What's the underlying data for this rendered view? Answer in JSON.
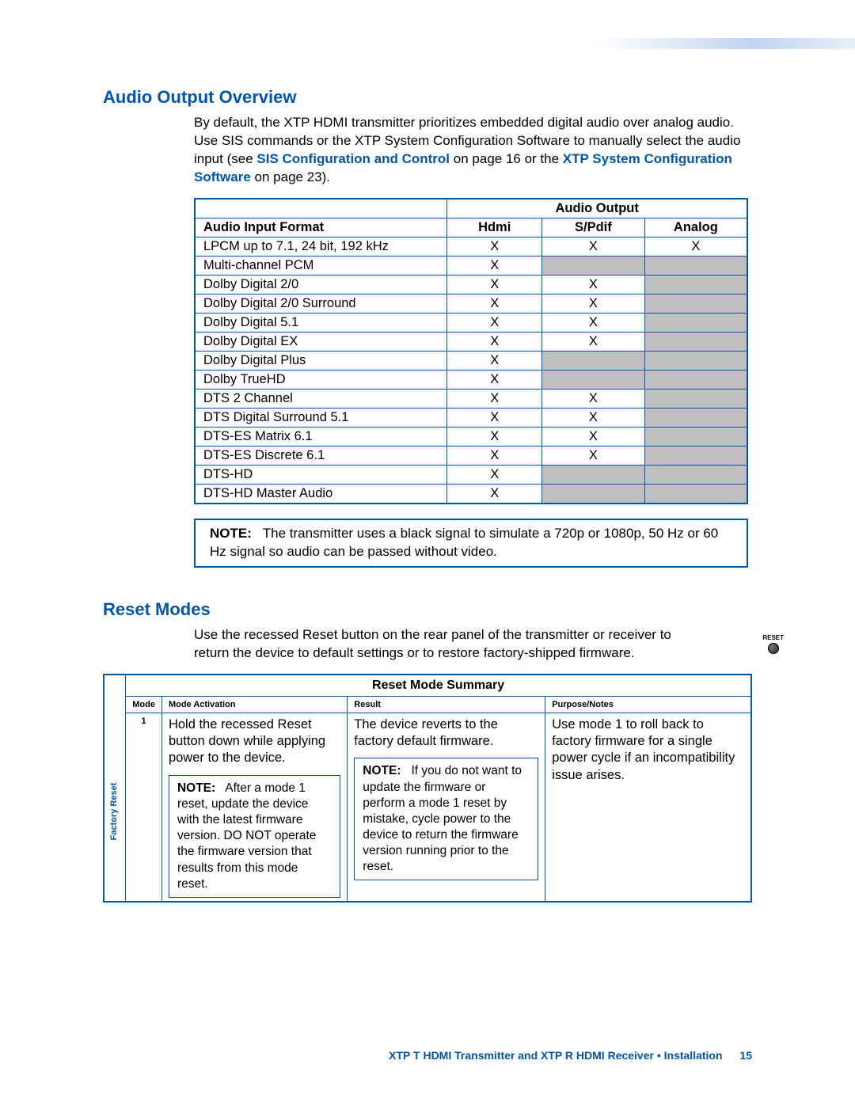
{
  "section1": {
    "title": "Audio Output Overview",
    "intro_1": "By default, the XTP HDMI transmitter prioritizes embedded digital audio over analog audio. Use SIS commands or the XTP System Configuration Software to manually select the audio input (see ",
    "link1": "SIS Configuration and Control",
    "intro_2": " on page 16 or the ",
    "link2": "XTP System Configuration Software",
    "intro_3": " on page 23).",
    "table": {
      "header_span": "Audio Output",
      "col_fmt": "Audio Input Format",
      "col_hdmi": "Hdmi",
      "col_spdif": "S/Pdif",
      "col_analog": "Analog",
      "rows": [
        {
          "fmt": "LPCM up to 7.1, 24 bit, 192 kHz",
          "hdmi": "X",
          "spdif": "X",
          "analog": "X",
          "grey_spdif": false,
          "grey_analog": false
        },
        {
          "fmt": "Multi-channel PCM",
          "hdmi": "X",
          "spdif": "",
          "analog": "",
          "grey_spdif": true,
          "grey_analog": true
        },
        {
          "fmt": "Dolby Digital 2/0",
          "hdmi": "X",
          "spdif": "X",
          "analog": "",
          "grey_spdif": false,
          "grey_analog": true
        },
        {
          "fmt": "Dolby Digital 2/0 Surround",
          "hdmi": "X",
          "spdif": "X",
          "analog": "",
          "grey_spdif": false,
          "grey_analog": true
        },
        {
          "fmt": "Dolby Digital 5.1",
          "hdmi": "X",
          "spdif": "X",
          "analog": "",
          "grey_spdif": false,
          "grey_analog": true
        },
        {
          "fmt": "Dolby Digital EX",
          "hdmi": "X",
          "spdif": "X",
          "analog": "",
          "grey_spdif": false,
          "grey_analog": true
        },
        {
          "fmt": "Dolby Digital Plus",
          "hdmi": "X",
          "spdif": "",
          "analog": "",
          "grey_spdif": true,
          "grey_analog": true
        },
        {
          "fmt": "Dolby TrueHD",
          "hdmi": "X",
          "spdif": "",
          "analog": "",
          "grey_spdif": true,
          "grey_analog": true
        },
        {
          "fmt": "DTS 2 Channel",
          "hdmi": "X",
          "spdif": "X",
          "analog": "",
          "grey_spdif": false,
          "grey_analog": true
        },
        {
          "fmt": "DTS Digital Surround 5.1",
          "hdmi": "X",
          "spdif": "X",
          "analog": "",
          "grey_spdif": false,
          "grey_analog": true
        },
        {
          "fmt": "DTS-ES Matrix 6.1",
          "hdmi": "X",
          "spdif": "X",
          "analog": "",
          "grey_spdif": false,
          "grey_analog": true
        },
        {
          "fmt": "DTS-ES Discrete 6.1",
          "hdmi": "X",
          "spdif": "X",
          "analog": "",
          "grey_spdif": false,
          "grey_analog": true
        },
        {
          "fmt": "DTS-HD",
          "hdmi": "X",
          "spdif": "",
          "analog": "",
          "grey_spdif": true,
          "grey_analog": true
        },
        {
          "fmt": "DTS-HD Master Audio",
          "hdmi": "X",
          "spdif": "",
          "analog": "",
          "grey_spdif": true,
          "grey_analog": true
        }
      ]
    },
    "note_label": "NOTE:",
    "note_text": "The transmitter uses a black signal to simulate a 720p or 1080p, 50 Hz or 60 Hz signal so audio can be passed without video."
  },
  "section2": {
    "title": "Reset Modes",
    "intro": "Use the recessed Reset button on the rear panel of the transmitter or receiver to return the device to default settings or to restore factory-shipped firmware.",
    "reset_label": "RESET",
    "table": {
      "title": "Reset Mode Summary",
      "hdr_mode": "Mode",
      "hdr_act": "Mode Activation",
      "hdr_res": "Result",
      "hdr_pur": "Purpose/Notes",
      "vlabel": "Factory Reset",
      "mode": "1",
      "activation": "Hold the recessed Reset button down while applying power to the device.",
      "act_note_label": "NOTE:",
      "act_note": "After a mode 1 reset, update the device with the latest firmware version. DO NOT operate the firmware version that results from this mode reset.",
      "result": "The device reverts to the factory default firmware.",
      "res_note_label": "NOTE:",
      "res_note": "If you do not want to update the firmware or perform a mode 1 reset by mistake, cycle power to the device to return the firmware version running prior to the reset.",
      "purpose": "Use mode 1 to roll back to factory firmware for a single power cycle if an incompatibility issue arises."
    }
  },
  "footer": {
    "text": "XTP T HDMI Transmitter and XTP R HDMI Receiver • Installation",
    "page": "15"
  }
}
